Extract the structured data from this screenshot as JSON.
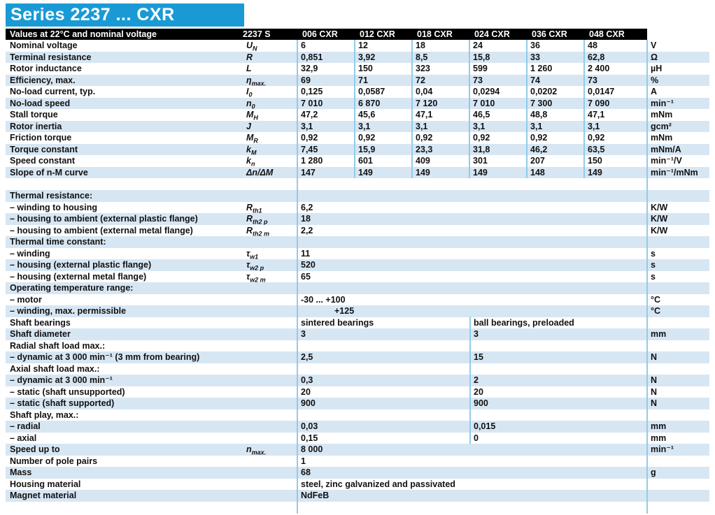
{
  "page": {
    "title": "Series 2237 ... CXR"
  },
  "colors": {
    "accent_blue": "#1a9ad5",
    "row_shade": "#d7e6f3",
    "divider": "#92cbe9",
    "header_bg": "#000000"
  },
  "table": {
    "header": {
      "label": "Values at 22°C and nominal voltage",
      "series": "2237 S",
      "columns": [
        "006 CXR",
        "012 CXR",
        "018 CXR",
        "024 CXR",
        "036 CXR",
        "048 CXR"
      ]
    },
    "blocks": [
      {
        "rows": [
          {
            "label": "Nominal voltage",
            "sym": "U",
            "sub": "N",
            "type": "cols",
            "values": [
              "6",
              "12",
              "18",
              "24",
              "36",
              "48"
            ],
            "unit": "V"
          },
          {
            "label": "Terminal resistance",
            "sym": "R",
            "sub": "",
            "type": "cols",
            "values": [
              "0,851",
              "3,92",
              "8,5",
              "15,8",
              "33",
              "62,8"
            ],
            "unit": "Ω"
          },
          {
            "label": "Rotor inductance",
            "sym": "L",
            "sub": "",
            "type": "cols",
            "values": [
              "32,9",
              "150",
              "323",
              "599",
              "1 260",
              "2 400"
            ],
            "unit": "µH"
          },
          {
            "label": "Efficiency, max.",
            "sym": "η",
            "sub": "max.",
            "type": "cols",
            "values": [
              "69",
              "71",
              "72",
              "73",
              "74",
              "73"
            ],
            "unit": "%"
          },
          {
            "label": "No-load current, typ.",
            "sym": "I",
            "sub": "0",
            "type": "cols",
            "values": [
              "0,125",
              "0,0587",
              "0,04",
              "0,0294",
              "0,0202",
              "0,0147"
            ],
            "unit": "A"
          },
          {
            "label": "No-load speed",
            "sym": "n",
            "sub": "0",
            "type": "cols",
            "values": [
              "7 010",
              "6 870",
              "7 120",
              "7 010",
              "7 300",
              "7 090"
            ],
            "unit": "min⁻¹"
          },
          {
            "label": "Stall torque",
            "sym": "M",
            "sub": "H",
            "type": "cols",
            "values": [
              "47,2",
              "45,6",
              "47,1",
              "46,5",
              "48,8",
              "47,1"
            ],
            "unit": "mNm"
          },
          {
            "label": "Rotor inertia",
            "sym": "J",
            "sub": "",
            "type": "cols",
            "values": [
              "3,1",
              "3,1",
              "3,1",
              "3,1",
              "3,1",
              "3,1"
            ],
            "unit": "gcm²"
          },
          {
            "label": "Friction torque",
            "sym": "M",
            "sub": "R",
            "type": "cols",
            "values": [
              "0,92",
              "0,92",
              "0,92",
              "0,92",
              "0,92",
              "0,92"
            ],
            "unit": "mNm"
          },
          {
            "label": "Torque constant",
            "sym": "k",
            "sub": "M",
            "type": "cols",
            "values": [
              "7,45",
              "15,9",
              "23,3",
              "31,8",
              "46,2",
              "63,5"
            ],
            "unit": "mNm/A"
          },
          {
            "label": "Speed constant",
            "sym": "k",
            "sub": "n",
            "type": "cols",
            "values": [
              "1 280",
              "601",
              "409",
              "301",
              "207",
              "150"
            ],
            "unit": "min⁻¹/V"
          },
          {
            "label": "Slope of n-M curve",
            "sym": "Δn/ΔM",
            "sub": "",
            "type": "cols",
            "values": [
              "147",
              "149",
              "149",
              "149",
              "148",
              "149"
            ],
            "unit": "min⁻¹/mNm"
          }
        ]
      },
      {
        "rows": [
          {
            "label": "Thermal resistance:",
            "type": "head"
          },
          {
            "label": "– winding to housing",
            "sym": "R",
            "sub": "th1",
            "type": "span",
            "value": "6,2",
            "unit": "K/W"
          },
          {
            "label": "– housing to ambient (external plastic flange)",
            "sym": "R",
            "sub": "th2 p",
            "type": "span",
            "value": "18",
            "unit": "K/W"
          },
          {
            "label": "– housing to ambient (external metal flange)",
            "sym": "R",
            "sub": "th2 m",
            "type": "span",
            "value": "2,2",
            "unit": "K/W"
          },
          {
            "label": "Thermal time constant:",
            "type": "head"
          },
          {
            "label": "– winding",
            "sym": "τ",
            "sub": "w1",
            "type": "span",
            "value": "11",
            "unit": "s"
          },
          {
            "label": "– housing (external plastic flange)",
            "sym": "τ",
            "sub": "w2 p",
            "type": "span",
            "value": "520",
            "unit": "s"
          },
          {
            "label": "– housing (external metal flange)",
            "sym": "τ",
            "sub": "w2 m",
            "type": "span",
            "value": "65",
            "unit": "s"
          },
          {
            "label": "Operating temperature range:",
            "type": "head"
          },
          {
            "label": "– motor",
            "type": "span",
            "value": "-30  ... +100",
            "unit": "°C"
          },
          {
            "label": "– winding, max. permissible",
            "type": "span",
            "value": "+125",
            "indent": true,
            "unit": "°C"
          },
          {
            "label": "Shaft bearings",
            "type": "split",
            "values": [
              "sintered bearings",
              "ball bearings, preloaded"
            ],
            "unit": ""
          },
          {
            "label": "Shaft diameter",
            "type": "split",
            "values": [
              "3",
              "3"
            ],
            "unit": "mm"
          },
          {
            "label": "Radial shaft load max.:",
            "type": "head"
          },
          {
            "label": "– dynamic at 3 000 min⁻¹ (3 mm from bearing)",
            "type": "split",
            "values": [
              "2,5",
              "15"
            ],
            "unit": "N"
          },
          {
            "label": "Axial shaft load max.:",
            "type": "head"
          },
          {
            "label": "– dynamic at 3 000 min⁻¹",
            "type": "split",
            "values": [
              "0,3",
              "2"
            ],
            "unit": "N"
          },
          {
            "label": "– static (shaft unsupported)",
            "type": "split",
            "values": [
              "20",
              "20"
            ],
            "unit": "N"
          },
          {
            "label": "– static (shaft supported)",
            "type": "split",
            "values": [
              "900",
              "900"
            ],
            "unit": "N"
          },
          {
            "label": "Shaft play, max.:",
            "type": "head"
          },
          {
            "label": "– radial",
            "type": "split",
            "values": [
              "0,03",
              "0,015"
            ],
            "unit": "mm"
          },
          {
            "label": "– axial",
            "type": "split",
            "values": [
              "0,15",
              "0"
            ],
            "unit": "mm"
          },
          {
            "label": "Speed up to",
            "sym": "n",
            "sub": "max.",
            "type": "span",
            "value": "8 000",
            "unit": "min⁻¹"
          },
          {
            "label": "Number of pole pairs",
            "type": "span",
            "value": "1",
            "unit": ""
          },
          {
            "label": "Mass",
            "type": "span",
            "value": "68",
            "unit": "g"
          },
          {
            "label": "Housing material",
            "type": "span",
            "value": "steel, zinc galvanized and passivated",
            "unit": ""
          },
          {
            "label": "Magnet material",
            "type": "span",
            "value": "NdFeB",
            "unit": ""
          }
        ]
      }
    ]
  }
}
